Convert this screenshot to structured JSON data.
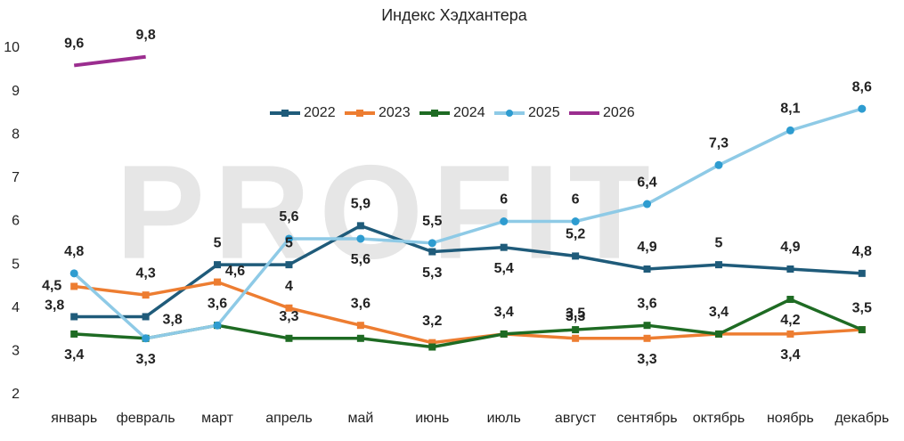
{
  "chart_data": {
    "type": "line",
    "title": "Индекс Хэдхантера",
    "watermark": "PROFIT",
    "categories": [
      "январь",
      "февраль",
      "март",
      "апрель",
      "май",
      "июнь",
      "июль",
      "август",
      "сентябрь",
      "октябрь",
      "ноябрь",
      "декабрь"
    ],
    "ylim": [
      2,
      10
    ],
    "yticks": [
      2,
      3,
      4,
      5,
      6,
      7,
      8,
      9,
      10
    ],
    "grid": false,
    "legend": "top",
    "series": [
      {
        "name": "2022",
        "color": "#1f5b7a",
        "marker": "square",
        "values": [
          3.8,
          3.8,
          5,
          5,
          5.9,
          5.3,
          5.4,
          5.2,
          4.9,
          5,
          4.9,
          4.8
        ],
        "value_labels": [
          "3,8",
          "3,8",
          "5",
          "5",
          "5,9",
          "5,3",
          "5,4",
          "5,2",
          "4,9",
          "5",
          "4,9",
          "4,8"
        ]
      },
      {
        "name": "2023",
        "color": "#ed7d31",
        "marker": "square",
        "values": [
          4.5,
          4.3,
          4.6,
          4,
          3.6,
          3.2,
          3.4,
          3.3,
          3.3,
          3.4,
          3.4,
          3.5
        ],
        "value_labels": [
          "4,5",
          "4,3",
          "4,6",
          "4",
          "3,6",
          "3,2",
          "3,4",
          "3,3",
          "3,3",
          "3,4",
          "3,4",
          "3,5"
        ]
      },
      {
        "name": "2024",
        "color": "#1e6b23",
        "marker": "square",
        "values": [
          3.4,
          3.3,
          3.6,
          3.3,
          3.3,
          3.1,
          3.4,
          3.5,
          3.6,
          3.4,
          4.2,
          3.5
        ],
        "value_labels": [
          "3,4",
          "3,3",
          "3,6",
          "3,3",
          null,
          null,
          null,
          "3,5",
          "3,6",
          null,
          "4,2",
          null
        ]
      },
      {
        "name": "2025",
        "color": "#8ecae6",
        "marker_color": "#2e9cd0",
        "marker": "circle",
        "values": [
          4.8,
          3.3,
          3.6,
          5.6,
          5.6,
          5.5,
          6,
          6,
          6.4,
          7.3,
          8.1,
          8.6
        ],
        "value_labels": [
          "4,8",
          null,
          null,
          "5,6",
          "5,6",
          "5,5",
          "6",
          "6",
          "6,4",
          "7,3",
          "8,1",
          "8,6"
        ]
      },
      {
        "name": "2026",
        "color": "#9b2d8f",
        "marker": "none",
        "values": [
          9.6,
          9.8,
          null,
          null,
          null,
          null,
          null,
          null,
          null,
          null,
          null,
          null
        ],
        "value_labels": [
          "9,6",
          "9,8",
          null,
          null,
          null,
          null,
          null,
          null,
          null,
          null,
          null,
          null
        ]
      }
    ]
  }
}
